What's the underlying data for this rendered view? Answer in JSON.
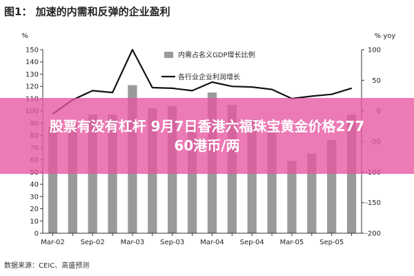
{
  "figure_title": "图1： 加速的内需和反弹的企业盈利",
  "source": "数据来源：CEIC、高盛预测",
  "overlay": {
    "line1": "股票有没有杠杆 9月7日香港六福珠宝黄金价格277",
    "line2": "60港币/两",
    "color": "#e754a0"
  },
  "chart_data": {
    "type": "bar+line",
    "title": "图1： 加速的内需和反弹的企业盈利",
    "left_axis": {
      "label": "%",
      "min": 0,
      "max": 150,
      "ticks": [
        0,
        10,
        20,
        30,
        40,
        50,
        60,
        70,
        80,
        90,
        100,
        110,
        120,
        130,
        140,
        150
      ]
    },
    "right_axis": {
      "label": "% yoy",
      "min": -200,
      "max": 100,
      "ticks": [
        -200,
        -150,
        -100,
        -50,
        0,
        50,
        100
      ]
    },
    "x_tick_labels": [
      "Mar-02",
      "Sep-02",
      "Mar-03",
      "Sep-03",
      "Mar-04",
      "Sep-04",
      "Mar-05",
      "Sep-05"
    ],
    "categories": [
      "Mar-02",
      "Jun-02",
      "Sep-02",
      "Dec-02",
      "Mar-03",
      "Jun-03",
      "Sep-03",
      "Dec-03",
      "Mar-04",
      "Jun-04",
      "Sep-04",
      "Dec-04",
      "Mar-05",
      "Jun-05",
      "Sep-05",
      "Dec-05"
    ],
    "series": [
      {
        "name": "内需占名义GDP增长比例",
        "type": "bar",
        "axis": "left",
        "color": "#9a9a9a",
        "values": [
          87,
          91,
          97,
          97,
          121,
          102,
          104,
          89,
          115,
          105,
          93,
          85,
          59,
          65,
          76,
          97
        ]
      },
      {
        "name": "各行业企业利润增长",
        "type": "line",
        "axis": "right",
        "color": "#111111",
        "values": [
          -5,
          18,
          33,
          30,
          100,
          38,
          37,
          33,
          47,
          40,
          39,
          35,
          20,
          24,
          27,
          37
        ]
      }
    ],
    "grid": false,
    "legend_position": "top-center"
  }
}
